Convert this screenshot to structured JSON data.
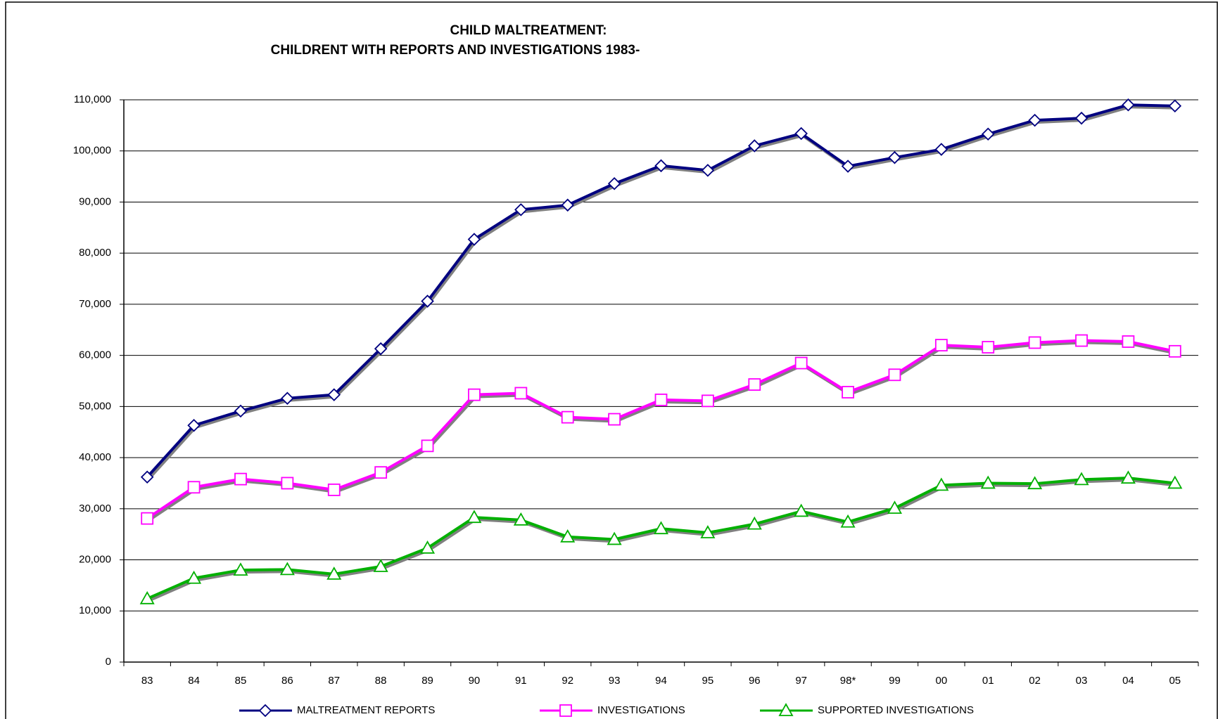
{
  "chart_data": {
    "type": "line",
    "title": "CHILD MALTREATMENT:",
    "subtitle": "CHILDRENT WITH REPORTS AND INVESTIGATIONS 1983-",
    "categories": [
      "83",
      "84",
      "85",
      "86",
      "87",
      "88",
      "89",
      "90",
      "91",
      "92",
      "93",
      "94",
      "95",
      "96",
      "97",
      "98*",
      "99",
      "00",
      "01",
      "02",
      "03",
      "04",
      "05"
    ],
    "series": [
      {
        "name": "MALTREATMENT REPORTS",
        "color": "#000080",
        "marker": "diamond",
        "values": [
          36200,
          46300,
          49100,
          51600,
          52300,
          61300,
          70600,
          82700,
          88500,
          89400,
          93600,
          97100,
          96200,
          101000,
          103400,
          97000,
          98700,
          100300,
          103300,
          106000,
          106400,
          109000,
          108800
        ]
      },
      {
        "name": "INVESTIGATIONS",
        "color": "#ff00ff",
        "marker": "square",
        "values": [
          28100,
          34200,
          35800,
          35000,
          33700,
          37100,
          42300,
          52300,
          52600,
          47900,
          47500,
          51300,
          51100,
          54300,
          58500,
          52800,
          56200,
          62000,
          61600,
          62500,
          62900,
          62700,
          60800
        ]
      },
      {
        "name": "SUPPORTED INVESTIGATIONS",
        "color": "#00b000",
        "marker": "triangle",
        "values": [
          12400,
          16400,
          18000,
          18100,
          17200,
          18700,
          22300,
          28300,
          27800,
          24500,
          24000,
          26100,
          25300,
          27000,
          29500,
          27400,
          30100,
          34600,
          35000,
          34900,
          35700,
          36000,
          35000
        ]
      }
    ],
    "ylim": [
      0,
      110000
    ],
    "yticks": [
      0,
      {
        "value": 10000,
        "label": "10,000"
      },
      {
        "value": 20000,
        "label": "20,000"
      },
      {
        "value": 30000,
        "label": "30,000"
      },
      {
        "value": 40000,
        "label": "40,000"
      },
      {
        "value": 50000,
        "label": "50,000"
      },
      {
        "value": 60000,
        "label": "60,000"
      },
      {
        "value": 70000,
        "label": "70,000"
      },
      {
        "value": 80000,
        "label": "80,000"
      },
      {
        "value": 90000,
        "label": "90,000"
      },
      {
        "value": 100000,
        "label": "100,000"
      },
      {
        "value": 110000,
        "label": "110,000"
      }
    ],
    "grid": true,
    "legend": "bottom"
  }
}
